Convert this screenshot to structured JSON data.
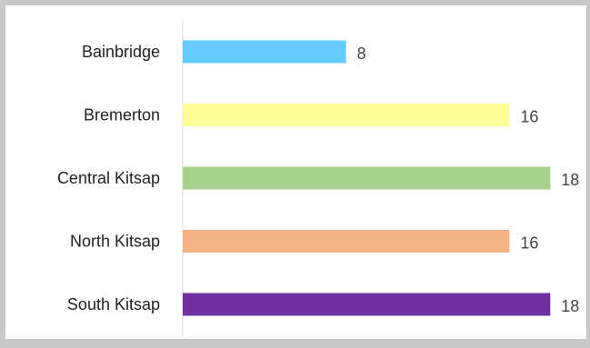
{
  "chart_data": {
    "type": "bar",
    "orientation": "horizontal",
    "categories": [
      "Bainbridge",
      "Bremerton",
      "Central Kitsap",
      "North Kitsap",
      "South Kitsap"
    ],
    "values": [
      8,
      16,
      18,
      16,
      18
    ],
    "colors": [
      "#66ccff",
      "#ffff99",
      "#a9d18e",
      "#f4b183",
      "#7030a0"
    ],
    "xlim": [
      0,
      18.7
    ],
    "grid": false,
    "legend": "none",
    "data_labels": true
  }
}
